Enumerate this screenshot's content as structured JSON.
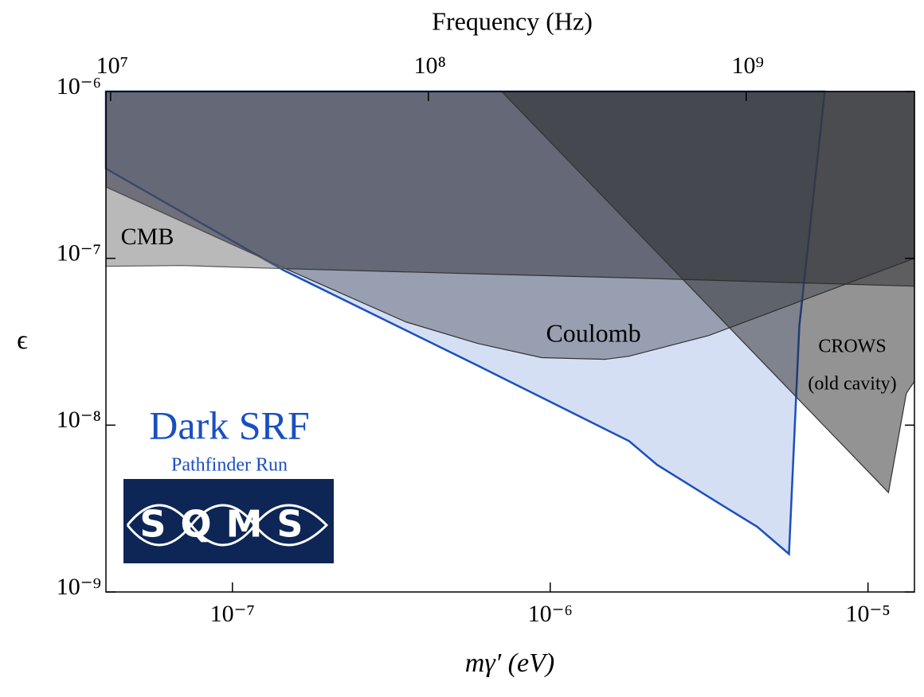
{
  "chart_data": {
    "type": "region",
    "x_label": "mγ′ (eV)",
    "y_label": "ϵ",
    "x2_label": "Frequency (Hz)",
    "log_x": true,
    "log_y": true,
    "xlim": [
      4e-08,
      1.4e-05
    ],
    "ylim": [
      1e-09,
      1e-06
    ],
    "xticks": [
      {
        "value": 1e-07,
        "label": "10⁻⁷"
      },
      {
        "value": 1e-06,
        "label": "10⁻⁶"
      },
      {
        "value": 1e-05,
        "label": "10⁻⁵"
      }
    ],
    "yticks": [
      {
        "value": 1e-09,
        "label": "10⁻⁹"
      },
      {
        "value": 1e-08,
        "label": "10⁻⁸"
      },
      {
        "value": 1e-07,
        "label": "10⁻⁷"
      },
      {
        "value": 1e-06,
        "label": "10⁻⁶"
      }
    ],
    "x2lim": [
      9670000.0,
      3385000000.0
    ],
    "x2ticks": [
      {
        "value": 10000000,
        "label": "10⁷"
      },
      {
        "value": 100000000,
        "label": "10⁸"
      },
      {
        "value": 1000000000,
        "label": "10⁹"
      }
    ],
    "regions": [
      {
        "color": "#d5dff4",
        "edge": "#1a4fc0",
        "x": [
          4e-08,
          1.45e-07,
          5.9e-07,
          1.77e-06,
          2.17e-06,
          3.45e-06,
          4.48e-06,
          5.64e-06,
          6.08e-06,
          7.31e-06,
          4e-08
        ],
        "y": [
          3.45e-07,
          8.48e-08,
          2.28e-08,
          8.03e-09,
          5.78e-09,
          3.34e-09,
          2.46e-09,
          1.69e-09,
          3.94e-08,
          1e-06,
          1e-06
        ]
      },
      {
        "color": "rgba(90,95,110,0.5)",
        "edge": "#333333",
        "x": [
          4e-08,
          1.47e-07,
          3.51e-07,
          5.9e-07,
          9.4e-07,
          1.49e-06,
          1.77e-06,
          3.16e-06,
          1.4e-05,
          1.4e-05,
          4e-08
        ],
        "y": [
          2.68e-07,
          8.67e-08,
          4.16e-08,
          3.09e-08,
          2.54e-08,
          2.48e-08,
          2.59e-08,
          3.45e-08,
          1e-07,
          1e-06,
          1e-06
        ]
      },
      {
        "color": "rgba(60,60,70,0.54)",
        "edge": "#333333",
        "x": [
          4e-08,
          1.4e-05,
          1.4e-05,
          1.88e-06,
          1.47e-07,
          4e-08
        ],
        "y": [
          1e-06,
          1e-06,
          6.81e-08,
          7.61e-08,
          8.67e-08,
          2.68e-07
        ]
      },
      {
        "color": "rgba(100,100,100,0.45)",
        "edge": "#555555",
        "x": [
          4e-08,
          1.47e-07,
          6.95e-08,
          4e-08
        ],
        "y": [
          2.68e-07,
          8.67e-08,
          9.06e-08,
          8.96e-08
        ]
      },
      {
        "color": "rgba(40,40,40,0.5)",
        "edge": "#333333",
        "x": [
          7.03e-07,
          1.4e-05,
          1.4e-05,
          1.32e-05,
          1.16e-05
        ],
        "y": [
          1e-06,
          1e-06,
          1.83e-08,
          1.55e-08,
          3.94e-09
        ]
      }
    ],
    "annotations": [
      "CMB",
      "Coulomb",
      "CROWS",
      "(old cavity)",
      "Dark SRF",
      "Pathfinder Run"
    ],
    "logo_text": "SQMS"
  }
}
